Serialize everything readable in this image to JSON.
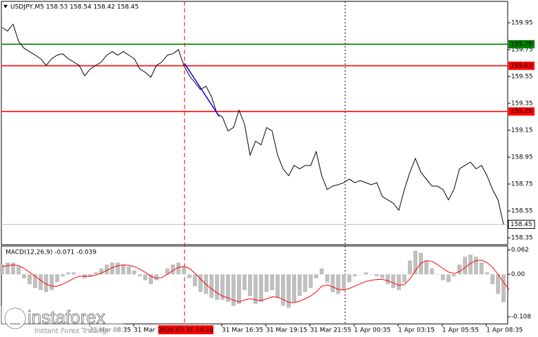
{
  "chart_data": [
    {
      "type": "line",
      "title": "USDJPY,M5  158.53 158.54 158.42 158.45",
      "color": "#000000",
      "values": [
        159.914,
        159.888,
        159.94,
        159.812,
        159.76,
        159.735,
        159.709,
        159.683,
        159.632,
        159.683,
        159.709,
        159.719,
        159.683,
        159.658,
        159.632,
        159.555,
        159.606,
        159.632,
        159.658,
        159.709,
        159.735,
        159.709,
        159.735,
        159.709,
        159.683,
        159.606,
        159.581,
        159.545,
        159.632,
        159.658,
        159.709,
        159.719,
        159.75,
        159.632,
        159.555,
        159.504,
        159.453,
        159.478,
        159.401,
        159.273,
        159.247,
        159.145,
        159.17,
        159.299,
        159.196,
        158.965,
        159.068,
        159.042,
        159.17,
        159.145,
        158.965,
        158.863,
        158.812,
        158.888,
        158.863,
        158.888,
        158.888,
        158.991,
        158.812,
        158.709,
        158.735,
        158.745,
        158.76,
        158.786,
        158.76,
        158.776,
        158.76,
        158.745,
        158.76,
        158.658,
        158.632,
        158.606,
        158.555,
        158.709,
        158.837,
        158.94,
        158.837,
        158.786,
        158.735,
        158.735,
        158.709,
        158.632,
        158.709,
        158.863,
        158.888,
        158.914,
        158.863,
        158.888,
        158.812,
        158.709,
        158.632,
        158.45
      ],
      "xlim": [
        -0.125,
        91.75
      ],
      "ylim": [
        158.299,
        160.109
      ],
      "yticks": [
        159.95,
        159.75,
        159.55,
        159.35,
        159.15,
        158.95,
        158.75,
        158.55,
        158.35
      ],
      "levels": [
        {
          "value": 159.79,
          "color": "#008000"
        },
        {
          "value": 159.63,
          "color": "#ff0000"
        },
        {
          "value": 159.29,
          "color": "#ff0000"
        }
      ],
      "last": 158.45,
      "trendline": {
        "color": "#0000ff",
        "x": [
          33.1,
          39.4
        ],
        "y": [
          159.648,
          159.253
        ]
      },
      "crosshair": {
        "x": 33.1,
        "label": "2026.03.31 14:20",
        "color": "#ff0000"
      },
      "separator": {
        "x": 62.25
      },
      "xticks": [
        {
          "value": 15.875,
          "label": "31 Mar 08:35"
        },
        {
          "value": 23.875,
          "label": "31 Mar 11:15"
        },
        {
          "value": 39.875,
          "label": "31 Mar 16:35"
        },
        {
          "value": 47.875,
          "label": "31 Mar 19:15"
        },
        {
          "value": 55.875,
          "label": "31 Mar 21:55"
        },
        {
          "value": 63.875,
          "label": "1 Apr 00:35"
        },
        {
          "value": 71.875,
          "label": "1 Apr 03:15"
        },
        {
          "value": 79.875,
          "label": "1 Apr 05:55"
        },
        {
          "value": 87.875,
          "label": "1 Apr 08:35"
        }
      ],
      "watermark": {
        "name": "instaforex",
        "tagline": "Instant Forex Trading"
      }
    },
    {
      "type": "macd",
      "title": "MACD(12,26,9) -0.071 -0.039",
      "histogram": {
        "color": "#c0c0c0",
        "values": [
          0.025,
          0.03,
          0.03,
          0.02,
          -0.01,
          -0.025,
          -0.035,
          -0.04,
          -0.045,
          -0.04,
          -0.02,
          -0.005,
          0.005,
          0.005,
          0.0,
          -0.01,
          -0.005,
          0.005,
          0.015,
          0.025,
          0.03,
          0.03,
          0.025,
          0.02,
          0.01,
          -0.005,
          -0.015,
          -0.025,
          -0.015,
          0.0,
          0.015,
          0.025,
          0.03,
          0.02,
          -0.01,
          -0.03,
          -0.045,
          -0.05,
          -0.06,
          -0.065,
          -0.065,
          -0.07,
          -0.08,
          -0.075,
          -0.04,
          -0.055,
          -0.075,
          -0.07,
          -0.045,
          -0.04,
          -0.06,
          -0.08,
          -0.085,
          -0.07,
          -0.055,
          -0.045,
          -0.035,
          -0.01,
          0.015,
          -0.02,
          -0.045,
          -0.05,
          -0.04,
          -0.02,
          -0.005,
          0.0,
          0.005,
          0.0,
          -0.005,
          -0.01,
          -0.025,
          -0.035,
          -0.04,
          -0.02,
          0.035,
          0.06,
          0.055,
          0.035,
          0.015,
          0.0,
          -0.015,
          -0.02,
          -0.005,
          0.025,
          0.045,
          0.05,
          0.045,
          0.03,
          0.005,
          -0.025,
          -0.05,
          -0.071
        ]
      },
      "signal": {
        "color": "#ff0000",
        "values": [
          0.02,
          0.022,
          0.024,
          0.022,
          0.015,
          0.005,
          -0.005,
          -0.015,
          -0.025,
          -0.03,
          -0.03,
          -0.025,
          -0.018,
          -0.01,
          -0.005,
          -0.005,
          -0.005,
          -0.002,
          0.003,
          0.01,
          0.017,
          0.022,
          0.024,
          0.023,
          0.02,
          0.013,
          0.005,
          -0.005,
          -0.01,
          -0.008,
          0.0,
          0.01,
          0.018,
          0.02,
          0.015,
          0.003,
          -0.012,
          -0.025,
          -0.037,
          -0.047,
          -0.055,
          -0.06,
          -0.066,
          -0.07,
          -0.065,
          -0.062,
          -0.065,
          -0.067,
          -0.062,
          -0.057,
          -0.058,
          -0.064,
          -0.071,
          -0.072,
          -0.068,
          -0.062,
          -0.055,
          -0.045,
          -0.03,
          -0.027,
          -0.032,
          -0.038,
          -0.04,
          -0.036,
          -0.03,
          -0.024,
          -0.018,
          -0.015,
          -0.013,
          -0.013,
          -0.016,
          -0.022,
          -0.028,
          -0.026,
          -0.012,
          0.01,
          0.028,
          0.035,
          0.033,
          0.025,
          0.015,
          0.006,
          0.002,
          0.007,
          0.017,
          0.028,
          0.035,
          0.036,
          0.03,
          0.018,
          0.0,
          -0.02,
          -0.039
        ]
      },
      "xlim": [
        -0.125,
        91.75
      ],
      "ylim": [
        -0.126,
        0.072
      ],
      "yticks": [
        0.062,
        {
          "value": 0,
          "label": "0.00"
        },
        -0.108
      ]
    }
  ]
}
